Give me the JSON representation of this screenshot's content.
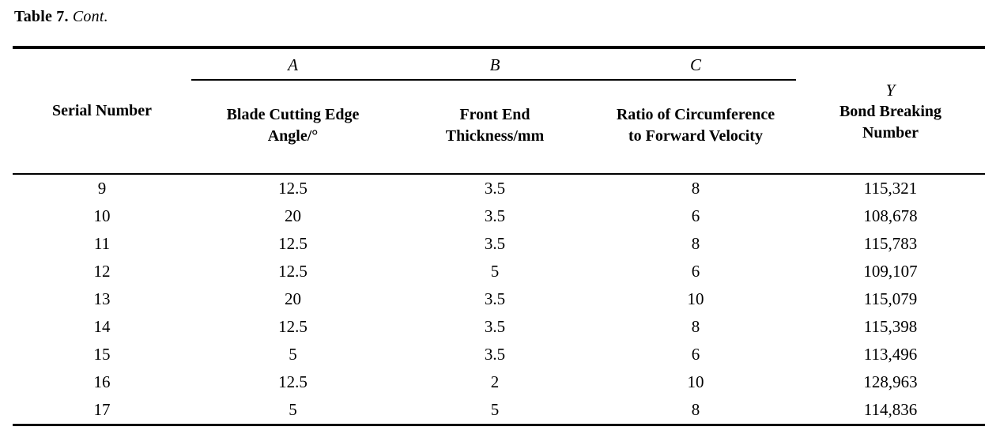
{
  "caption": {
    "label": "Table 7.",
    "cont": "Cont."
  },
  "table": {
    "serial_header": "Serial Number",
    "groups": [
      {
        "symbol": "A",
        "label": "Blade Cutting Edge Angle/°"
      },
      {
        "symbol": "B",
        "label": "Front End Thickness/mm"
      },
      {
        "symbol": "C",
        "label": "Ratio of Circumference to Forward Velocity"
      }
    ],
    "y_header": {
      "symbol": "Y",
      "label": "Bond Breaking Number"
    },
    "rows": [
      {
        "serial": "9",
        "a": "12.5",
        "b": "3.5",
        "c": "8",
        "y": "115,321"
      },
      {
        "serial": "10",
        "a": "20",
        "b": "3.5",
        "c": "6",
        "y": "108,678"
      },
      {
        "serial": "11",
        "a": "12.5",
        "b": "3.5",
        "c": "8",
        "y": "115,783"
      },
      {
        "serial": "12",
        "a": "12.5",
        "b": "5",
        "c": "6",
        "y": "109,107"
      },
      {
        "serial": "13",
        "a": "20",
        "b": "3.5",
        "c": "10",
        "y": "115,079"
      },
      {
        "serial": "14",
        "a": "12.5",
        "b": "3.5",
        "c": "8",
        "y": "115,398"
      },
      {
        "serial": "15",
        "a": "5",
        "b": "3.5",
        "c": "6",
        "y": "113,496"
      },
      {
        "serial": "16",
        "a": "12.5",
        "b": "2",
        "c": "10",
        "y": "128,963"
      },
      {
        "serial": "17",
        "a": "5",
        "b": "5",
        "c": "8",
        "y": "114,836"
      }
    ]
  },
  "colors": {
    "text": "#000000",
    "background": "#ffffff",
    "rule": "#000000"
  }
}
